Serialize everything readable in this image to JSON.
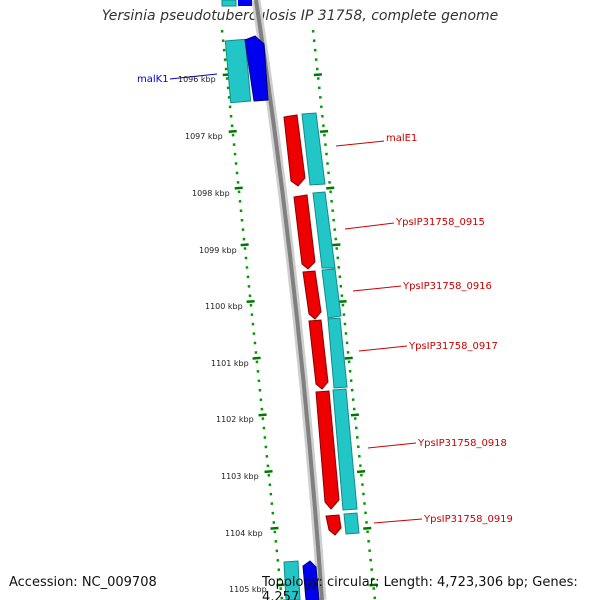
{
  "title": "Yersinia pseudotuberculosis IP 31758, complete genome",
  "footer": {
    "accession": "Accession: NC_009708",
    "summary": "Topology: circular; Length: 4,723,306 bp; Genes: 4,257"
  },
  "ticks": [
    {
      "label": "1096 kbp",
      "kbp": 1096
    },
    {
      "label": "1097 kbp",
      "kbp": 1097
    },
    {
      "label": "1098 kbp",
      "kbp": 1098
    },
    {
      "label": "1099 kbp",
      "kbp": 1099
    },
    {
      "label": "1100 kbp",
      "kbp": 1100
    },
    {
      "label": "1101 kbp",
      "kbp": 1101
    },
    {
      "label": "1102 kbp",
      "kbp": 1102
    },
    {
      "label": "1103 kbp",
      "kbp": 1103
    },
    {
      "label": "1104 kbp",
      "kbp": 1104
    },
    {
      "label": "1105 kbp",
      "kbp": 1105
    }
  ],
  "genes": [
    {
      "name": "malK1",
      "strand": "+",
      "color": "#0000cc"
    },
    {
      "name": "malE1",
      "strand": "-",
      "color": "#cc0000"
    },
    {
      "name": "YpsIP31758_0915",
      "strand": "-",
      "color": "#cc0000"
    },
    {
      "name": "YpsIP31758_0916",
      "strand": "-",
      "color": "#cc0000"
    },
    {
      "name": "YpsIP31758_0917",
      "strand": "-",
      "color": "#cc0000"
    },
    {
      "name": "YpsIP31758_0918",
      "strand": "-",
      "color": "#cc0000"
    },
    {
      "name": "YpsIP31758_0919",
      "strand": "-",
      "color": "#cc0000"
    }
  ],
  "colors": {
    "forward_gene": "#0000ee",
    "reverse_gene": "#ee0000",
    "cds_track": "#20c8c8",
    "backbone": "#888888",
    "tick_marks": "#007700"
  }
}
